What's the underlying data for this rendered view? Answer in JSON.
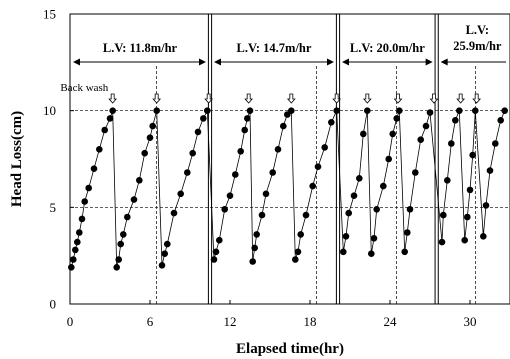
{
  "chart_data": {
    "type": "scatter",
    "xlabel": "Elapsed time(hr)",
    "ylabel": "Head Loss(cm)",
    "xlim": [
      0,
      33
    ],
    "ylim": [
      0,
      15
    ],
    "xticks": [
      0,
      6,
      12,
      18,
      24,
      30
    ],
    "yticks": [
      0,
      5,
      10,
      15
    ],
    "grid": false,
    "phase_separators": [
      10.5,
      20.1,
      27.5
    ],
    "reference_lines": {
      "horizontal": [
        5,
        10
      ],
      "vertical": [
        6.5,
        18.5,
        24.5,
        30.4
      ]
    },
    "phases": [
      {
        "label": "L.V: 11.8m/hr",
        "start": 0,
        "end": 10.5
      },
      {
        "label": "L.V: 14.7m/hr",
        "start": 10.5,
        "end": 20.1
      },
      {
        "label": "L.V: 20.0m/hr",
        "start": 20.1,
        "end": 27.5
      },
      {
        "label": "L.V:\n25.9m/hr",
        "start": 27.5,
        "end": 33
      }
    ],
    "annotation": {
      "text": "Back wash",
      "at_x": 3.1
    },
    "backwash_times": [
      3.2,
      6.5,
      10.4,
      13.4,
      16.6,
      20.0,
      22.3,
      24.6,
      27.3,
      29.3,
      30.5
    ],
    "series": [
      {
        "cycles": [
          [
            [
              0.1,
              1.9
            ],
            [
              0.25,
              2.3
            ],
            [
              0.4,
              2.8
            ],
            [
              0.55,
              3.2
            ],
            [
              0.7,
              3.7
            ],
            [
              0.9,
              4.4
            ],
            [
              1.1,
              5.3
            ],
            [
              1.4,
              6.0
            ],
            [
              1.8,
              7.0
            ],
            [
              2.2,
              8.0
            ],
            [
              2.6,
              9.0
            ],
            [
              3.0,
              9.6
            ],
            [
              3.2,
              10.0
            ]
          ],
          [
            [
              3.5,
              1.9
            ],
            [
              3.65,
              2.3
            ],
            [
              3.8,
              3.1
            ],
            [
              4.0,
              3.6
            ],
            [
              4.3,
              4.5
            ],
            [
              4.8,
              5.4
            ],
            [
              5.2,
              6.4
            ],
            [
              5.6,
              7.8
            ],
            [
              6.0,
              8.6
            ],
            [
              6.2,
              9.2
            ],
            [
              6.5,
              10.0
            ]
          ],
          [
            [
              6.9,
              2.0
            ],
            [
              7.1,
              2.6
            ],
            [
              7.3,
              3.1
            ],
            [
              7.8,
              4.7
            ],
            [
              8.3,
              5.7
            ],
            [
              8.8,
              6.8
            ],
            [
              9.2,
              7.8
            ],
            [
              9.6,
              8.9
            ],
            [
              10.0,
              9.6
            ],
            [
              10.3,
              10.0
            ]
          ],
          [
            [
              10.8,
              2.3
            ],
            [
              10.95,
              2.7
            ],
            [
              11.2,
              3.3
            ],
            [
              11.6,
              4.9
            ],
            [
              12.0,
              5.6
            ],
            [
              12.4,
              6.7
            ],
            [
              12.8,
              7.9
            ],
            [
              13.1,
              9.0
            ],
            [
              13.3,
              9.6
            ],
            [
              13.5,
              10.0
            ]
          ],
          [
            [
              13.7,
              2.2
            ],
            [
              13.85,
              2.9
            ],
            [
              14.0,
              3.6
            ],
            [
              14.4,
              4.6
            ],
            [
              14.7,
              5.7
            ],
            [
              15.2,
              6.8
            ],
            [
              15.6,
              8.0
            ],
            [
              16.0,
              9.2
            ],
            [
              16.3,
              9.8
            ],
            [
              16.6,
              10.0
            ]
          ],
          [
            [
              16.9,
              2.3
            ],
            [
              17.1,
              2.7
            ],
            [
              17.3,
              3.6
            ],
            [
              17.7,
              4.6
            ],
            [
              18.2,
              6.1
            ],
            [
              18.6,
              7.1
            ],
            [
              19.1,
              8.1
            ],
            [
              19.6,
              9.4
            ],
            [
              20.0,
              10.0
            ]
          ],
          [
            [
              20.5,
              2.7
            ],
            [
              20.7,
              3.5
            ],
            [
              20.9,
              4.7
            ],
            [
              21.3,
              5.6
            ],
            [
              21.7,
              6.5
            ],
            [
              22.0,
              8.8
            ],
            [
              22.3,
              10.0
            ]
          ],
          [
            [
              22.6,
              2.6
            ],
            [
              22.8,
              3.4
            ],
            [
              23.0,
              4.9
            ],
            [
              23.5,
              6.1
            ],
            [
              23.9,
              7.5
            ],
            [
              24.2,
              8.8
            ],
            [
              24.5,
              9.6
            ],
            [
              24.7,
              10.0
            ]
          ],
          [
            [
              25.1,
              2.7
            ],
            [
              25.3,
              3.7
            ],
            [
              25.5,
              4.9
            ],
            [
              25.9,
              6.8
            ],
            [
              26.3,
              8.5
            ],
            [
              26.7,
              9.2
            ],
            [
              27.0,
              9.9
            ]
          ],
          [
            [
              27.9,
              3.2
            ],
            [
              28.0,
              4.6
            ],
            [
              28.3,
              6.4
            ],
            [
              28.6,
              8.3
            ],
            [
              28.9,
              9.5
            ],
            [
              29.2,
              10.0
            ]
          ],
          [
            [
              29.6,
              3.3
            ],
            [
              29.8,
              4.5
            ],
            [
              30.0,
              5.9
            ],
            [
              30.2,
              7.7
            ],
            [
              30.4,
              10.0
            ]
          ],
          [
            [
              31.0,
              3.5
            ],
            [
              31.2,
              5.1
            ],
            [
              31.5,
              6.9
            ],
            [
              31.9,
              8.3
            ],
            [
              32.3,
              9.5
            ],
            [
              32.6,
              10.0
            ]
          ]
        ]
      }
    ]
  }
}
